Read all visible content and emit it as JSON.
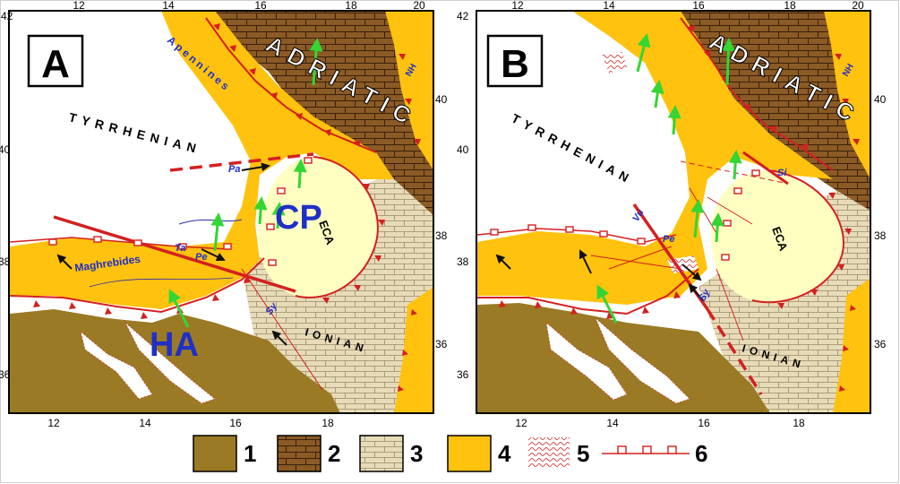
{
  "figure": {
    "colors": {
      "unit1": "#9b7a25",
      "unit2": "#8b5a25",
      "unit3": "#e8dcb8",
      "unit4": "#ffc20e",
      "eca": "#ffffc2",
      "fault": "#d42020",
      "arrow": "#33d633",
      "label_blue": "#1f2fc7"
    },
    "legend": [
      {
        "num": "1",
        "pattern": "solid-brown-swatch"
      },
      {
        "num": "2",
        "pattern": "brick-brown-swatch"
      },
      {
        "num": "3",
        "pattern": "brick-beige-swatch"
      },
      {
        "num": "4",
        "pattern": "solid-orange-swatch"
      },
      {
        "num": "5",
        "pattern": "red-wavy-scribble-swatch"
      },
      {
        "num": "6",
        "pattern": "red-line-with-squares-swatch"
      }
    ]
  },
  "panels": [
    {
      "letter": "A",
      "top_ticks": [
        "12",
        "14",
        "16",
        "18",
        "20"
      ],
      "bottom_ticks": [
        "12",
        "14",
        "16",
        "18"
      ],
      "left_ticks": [
        "42",
        "40",
        "38",
        "36"
      ],
      "right_ticks": [
        "40",
        "38",
        "36"
      ],
      "labels": {
        "tyrrhenian": "TYRRHENIAN",
        "adriatic": "ADRIATIC",
        "ionian": "IONIAN",
        "eca": "ECA",
        "apennines": "Apennines",
        "maghrebides": "Maghrebides",
        "nh": "NH",
        "cp": "CP",
        "ha": "HA",
        "pa": "Pa",
        "ta": "Ta",
        "pe": "Pe",
        "sy": "Sy"
      }
    },
    {
      "letter": "B",
      "top_ticks": [
        "12",
        "14",
        "16",
        "18",
        "20"
      ],
      "bottom_ticks": [
        "12",
        "14",
        "16",
        "18"
      ],
      "left_ticks": [
        "42",
        "40",
        "38",
        "36"
      ],
      "right_ticks": [
        "40",
        "38",
        "36"
      ],
      "labels": {
        "tyrrhenian": "TYRRHENIAN",
        "adriatic": "ADRIATIC",
        "ionian": "IONIAN",
        "eca": "ECA",
        "nh": "NH",
        "vu": "Vu",
        "pe": "Pe",
        "si": "Si",
        "sy": "Sy"
      }
    }
  ]
}
